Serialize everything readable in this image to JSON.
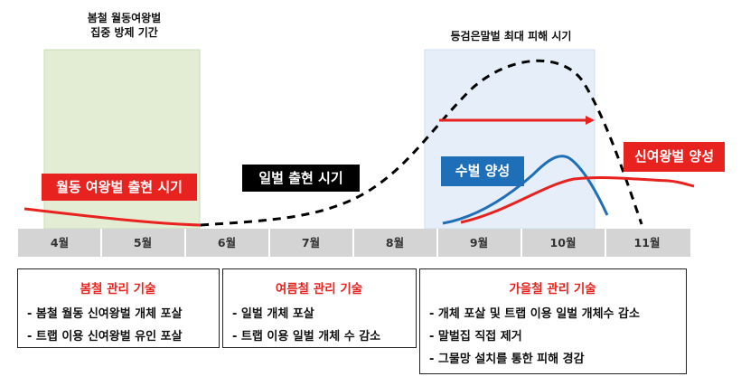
{
  "notes": {
    "spring_period": "봄철 월동여왕벌\n집중 방제 기간",
    "peak_damage": "등검은말벌 최대 피해 시기"
  },
  "labels": {
    "overwinter_queen": "월동 여왕벌 출현 시기",
    "worker": "일벌 출현 시기",
    "male": "수벌 양성",
    "new_queen": "신여왕벌 양성"
  },
  "months": [
    "4월",
    "5월",
    "6월",
    "7월",
    "8월",
    "9월",
    "10월",
    "11월"
  ],
  "boxes": {
    "spring": {
      "title": "봄철 관리 기술",
      "items": [
        "- 봄철 월동 신여왕벌 개체 포살",
        "- 트랩 이용 신여왕벌 유인 포살"
      ]
    },
    "summer": {
      "title": "여름철 관리 기술",
      "items": [
        "- 일벌 개체 포살",
        "- 트랩 이용 일벌 개체 수 감소"
      ]
    },
    "autumn": {
      "title": "가을철 관리 기술",
      "items": [
        "- 개체 포살 및 트랩 이용 일벌 개체수 감소",
        "- 말벌집 직접 제거",
        "- 그물망 설치를 통한 피해 경감"
      ]
    }
  },
  "colors": {
    "red": "#e8231f",
    "black": "#000000",
    "blue": "#1f6fb8",
    "green_band": "#e3edd3",
    "blue_band": "#e6eef9",
    "timeline": "#d4d4d4"
  }
}
